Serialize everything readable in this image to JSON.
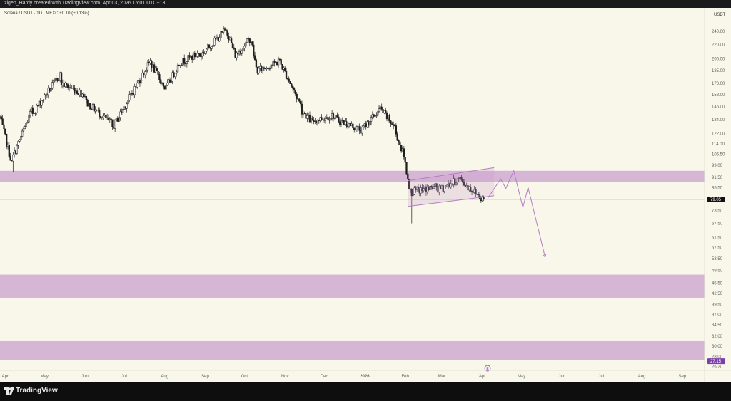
{
  "header": {
    "attribution": "zigen_Hardy created with TradingView.com, Apr 03, 2026 15:01 UTC+13"
  },
  "footer": {
    "brand": "TradingView",
    "brand_icon": "tradingview-logo-icon"
  },
  "colors": {
    "background": "#f8f7ea",
    "zone": "#d4b2d4",
    "candle": "#1e1e1e",
    "projection": "#b57cc6",
    "price_tag": "#131313",
    "low_tag": "#7a3fa8"
  },
  "chart_data": {
    "type": "candlestick",
    "title": "Solana / USDT · 1D · MEXC  +0.10 (+0.13%)",
    "currency_label": "USDT",
    "y_scale": "log",
    "ylim": [
      25.8,
      255
    ],
    "y_ticks": [
      240.0,
      220.0,
      200.0,
      185.0,
      170.0,
      158.0,
      146.0,
      134.0,
      122.0,
      114.0,
      106.5,
      99.0,
      91.5,
      85.5,
      79.05,
      73.5,
      67.5,
      61.5,
      57.5,
      53.5,
      49.5,
      45.5,
      42.5,
      39.5,
      37.0,
      34.5,
      32.0,
      30.0,
      28.0,
      27.15,
      26.2
    ],
    "y_tick_labels": [
      "240.00",
      "220.00",
      "200.00",
      "185.00",
      "170.00",
      "158.00",
      "146.00",
      "134.00",
      "122.00",
      "114.00",
      "106.50",
      "99.00",
      "91.50",
      "85.50",
      "79.05",
      "73.50",
      "67.50",
      "61.50",
      "57.50",
      "53.50",
      "49.50",
      "45.50",
      "42.50",
      "39.50",
      "37.00",
      "34.50",
      "32.00",
      "30.00",
      "28.00",
      "27.15",
      "26.20"
    ],
    "x_range": [
      "2025-03-28",
      "2026-09-18"
    ],
    "x_ticks": [
      "2025-04-01",
      "2025-05-01",
      "2025-06-01",
      "2025-07-01",
      "2025-08-01",
      "2025-09-01",
      "2025-10-01",
      "2025-11-01",
      "2025-12-01",
      "2026-01-01",
      "2026-02-01",
      "2026-03-01",
      "2026-04-01",
      "2026-05-01",
      "2026-06-01",
      "2026-07-01",
      "2026-08-01",
      "2026-09-01"
    ],
    "x_tick_labels": [
      "Apr",
      "May",
      "Jun",
      "Jul",
      "Aug",
      "Sep",
      "Oct",
      "Nov",
      "Dec",
      "2026",
      "Feb",
      "Mar",
      "Apr",
      "May",
      "Jun",
      "Jul",
      "Aug",
      "Sep"
    ],
    "current_price": 79.05,
    "current_price_label": "79.05",
    "low_price_tag": 27.15,
    "low_price_tag_label": "27.15",
    "zones": [
      {
        "from": 88.5,
        "to": 95.5
      },
      {
        "from": 41.3,
        "to": 48.1
      },
      {
        "from": 27.4,
        "to": 31.0
      }
    ],
    "anchors": [
      [
        "2025-03-28",
        140,
        136
      ],
      [
        "2025-04-07",
        97,
        105
      ],
      [
        "2025-04-22",
        145,
        140
      ],
      [
        "2025-05-14",
        182,
        170
      ],
      [
        "2025-06-02",
        157,
        150
      ],
      [
        "2025-06-22",
        130,
        127
      ],
      [
        "2025-07-22",
        200,
        192
      ],
      [
        "2025-08-02",
        163,
        165
      ],
      [
        "2025-08-14",
        200,
        196
      ],
      [
        "2025-08-28",
        208,
        204
      ],
      [
        "2025-09-18",
        245,
        238
      ],
      [
        "2025-09-25",
        200,
        206
      ],
      [
        "2025-10-06",
        230,
        226
      ],
      [
        "2025-10-11",
        180,
        185
      ],
      [
        "2025-10-27",
        196,
        200
      ],
      [
        "2025-11-14",
        145,
        142
      ],
      [
        "2025-11-23",
        130,
        133
      ],
      [
        "2025-12-09",
        138,
        135
      ],
      [
        "2025-12-31",
        124,
        127
      ],
      [
        "2026-01-14",
        145,
        142
      ],
      [
        "2026-01-25",
        126,
        122
      ],
      [
        "2026-02-01",
        103,
        100
      ],
      [
        "2026-02-06",
        79,
        83
      ],
      [
        "2026-02-26",
        86,
        84
      ],
      [
        "2026-03-16",
        91,
        89
      ],
      [
        "2026-04-02",
        79.05,
        79.05
      ]
    ],
    "wicks": [
      {
        "date": "2026-02-06",
        "low": 67.5
      },
      {
        "date": "2025-04-07",
        "low": 95
      }
    ],
    "channel": {
      "upper": [
        [
          "2026-02-03",
          89.5
        ],
        [
          "2026-04-10",
          97.5
        ]
      ],
      "lower": [
        [
          "2026-02-03",
          75.5
        ],
        [
          "2026-04-10",
          81.0
        ]
      ]
    },
    "projection": [
      [
        "2026-04-05",
        79.5
      ],
      [
        "2026-04-15",
        90.5
      ],
      [
        "2026-04-19",
        85.0
      ],
      [
        "2026-04-25",
        95.5
      ],
      [
        "2026-05-02",
        75.0
      ],
      [
        "2026-05-06",
        85.5
      ],
      [
        "2026-05-19",
        54.0
      ]
    ],
    "event_marker": {
      "date": "2026-04-05",
      "label": "E"
    }
  }
}
